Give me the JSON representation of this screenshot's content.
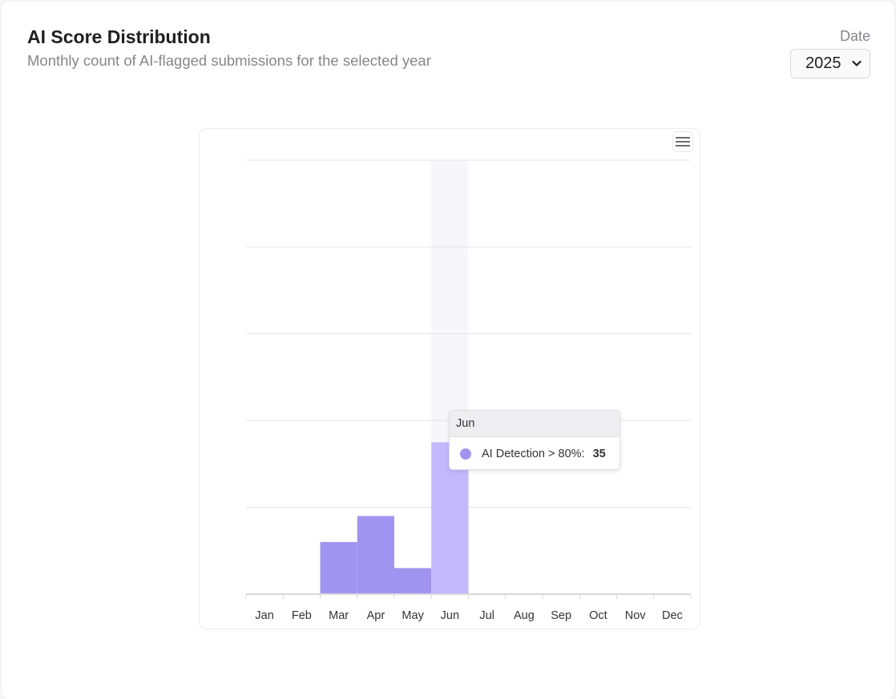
{
  "header": {
    "title": "AI Score Distribution",
    "subtitle": "Monthly count of AI-flagged submissions for the selected year"
  },
  "filter": {
    "label": "Date",
    "selected_year": "2025"
  },
  "colors": {
    "bar": "#a194f0",
    "bar_highlight": "#c4b8fd",
    "hover_band": "#f7f7fb",
    "grid": "#e3e3e6"
  },
  "tooltip": {
    "category": "Jun",
    "series_name": "AI Detection > 80%:",
    "value": "35"
  },
  "chart_data": {
    "type": "bar",
    "categories": [
      "Jan",
      "Feb",
      "Mar",
      "Apr",
      "May",
      "Jun",
      "Jul",
      "Aug",
      "Sep",
      "Oct",
      "Nov",
      "Dec"
    ],
    "series": [
      {
        "name": "AI Detection > 80%",
        "values": [
          0,
          0,
          12,
          18,
          6,
          35,
          0,
          0,
          0,
          0,
          0,
          0
        ]
      }
    ],
    "ylim": [
      0,
      100
    ],
    "grid": true,
    "highlighted_category": "Jun"
  }
}
